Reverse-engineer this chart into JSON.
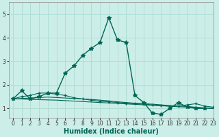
{
  "xlabel": "Humidex (Indice chaleur)",
  "bg_color": "#cceee8",
  "grid_color": "#b0ddd4",
  "line_color": "#006655",
  "xlim": [
    -0.5,
    23
  ],
  "ylim": [
    0.6,
    5.5
  ],
  "yticks": [
    1,
    2,
    3,
    4,
    5
  ],
  "xticks": [
    0,
    1,
    2,
    3,
    4,
    5,
    6,
    7,
    8,
    9,
    10,
    11,
    12,
    13,
    14,
    15,
    16,
    17,
    18,
    19,
    20,
    21,
    22,
    23
  ],
  "series": [
    {
      "x": [
        0,
        1,
        2,
        3,
        4,
        5,
        6,
        7,
        8,
        9,
        10,
        11,
        12,
        13,
        14,
        15,
        16,
        17,
        18,
        19,
        20,
        21,
        22,
        23
      ],
      "y": [
        1.4,
        1.75,
        1.4,
        1.5,
        1.65,
        1.65,
        2.5,
        2.8,
        3.25,
        3.55,
        3.8,
        4.85,
        3.9,
        3.8,
        1.55,
        1.25,
        0.8,
        0.75,
        1.0,
        1.25,
        1.05,
        1.0,
        1.0,
        null
      ],
      "marker": true
    },
    {
      "x": [
        0,
        1,
        2,
        3,
        4,
        5,
        6,
        7,
        8,
        9,
        10,
        11,
        12,
        13,
        14,
        15,
        16,
        17,
        18,
        19,
        20,
        21,
        22,
        23
      ],
      "y": [
        1.4,
        1.5,
        1.55,
        1.65,
        1.65,
        1.6,
        1.55,
        1.45,
        1.4,
        1.35,
        1.3,
        1.28,
        1.25,
        1.22,
        1.2,
        1.18,
        1.15,
        1.12,
        1.1,
        1.1,
        1.15,
        1.2,
        1.1,
        1.05
      ],
      "marker": true
    },
    {
      "x": [
        0,
        1,
        2,
        3,
        4,
        5,
        6,
        7,
        8,
        9,
        10,
        11,
        12,
        13,
        14,
        15,
        16,
        17,
        18,
        19,
        20,
        21,
        22,
        23
      ],
      "y": [
        1.4,
        1.42,
        1.44,
        1.46,
        1.48,
        1.46,
        1.44,
        1.42,
        1.4,
        1.38,
        1.35,
        1.32,
        1.28,
        1.25,
        1.22,
        1.2,
        1.18,
        1.15,
        1.12,
        1.1,
        1.08,
        1.05,
        1.02,
        1.0
      ],
      "marker": false
    },
    {
      "x": [
        0,
        1,
        2,
        3,
        4,
        5,
        6,
        7,
        8,
        9,
        10,
        11,
        12,
        13,
        14,
        15,
        16,
        17,
        18,
        19,
        20,
        21,
        22,
        23
      ],
      "y": [
        1.4,
        1.4,
        1.38,
        1.37,
        1.36,
        1.35,
        1.33,
        1.31,
        1.29,
        1.27,
        1.25,
        1.23,
        1.21,
        1.19,
        1.17,
        1.15,
        1.13,
        1.11,
        1.09,
        1.07,
        1.05,
        1.03,
        1.01,
        0.99
      ],
      "marker": false
    }
  ]
}
